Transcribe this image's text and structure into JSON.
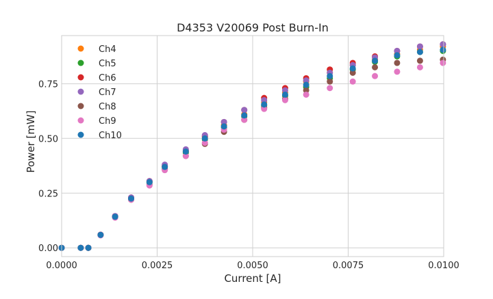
{
  "chart_data": {
    "type": "scatter",
    "title": "D4353 V20069 Post Burn-In",
    "xlabel": "Current [A]",
    "ylabel": "Power [mW]",
    "xlim": [
      0.0,
      0.01
    ],
    "ylim": [
      -0.04,
      0.97
    ],
    "xticks": [
      "0.0000",
      "0.0025",
      "0.0050",
      "0.0075",
      "0.0100"
    ],
    "xtick_values": [
      0.0,
      0.0025,
      0.005,
      0.0075,
      0.01
    ],
    "yticks": [
      "0.00",
      "0.25",
      "0.50",
      "0.75"
    ],
    "ytick_values": [
      0.0,
      0.25,
      0.5,
      0.75
    ],
    "grid": true,
    "legend_position": "top-left",
    "x": [
      0.0,
      0.0005,
      0.0007,
      0.00102,
      0.0014,
      0.00182,
      0.0023,
      0.0027,
      0.00325,
      0.00375,
      0.00425,
      0.00478,
      0.0053,
      0.00585,
      0.0064,
      0.00702,
      0.00762,
      0.0082,
      0.00878,
      0.00938,
      0.00998
    ],
    "series": [
      {
        "name": "Ch4",
        "color": "#ff7f0e",
        "values": [
          0.0,
          0.0,
          0.0,
          0.059,
          0.142,
          0.225,
          0.3,
          0.37,
          0.44,
          0.505,
          0.56,
          0.61,
          0.665,
          0.71,
          0.76,
          0.8,
          0.835,
          0.86,
          0.885,
          0.905,
          0.92
        ]
      },
      {
        "name": "Ch5",
        "color": "#2ca02c",
        "values": [
          0.0,
          0.0,
          0.0,
          0.059,
          0.142,
          0.225,
          0.3,
          0.37,
          0.435,
          0.495,
          0.55,
          0.6,
          0.65,
          0.695,
          0.735,
          0.775,
          0.815,
          0.85,
          0.875,
          0.895,
          0.9
        ]
      },
      {
        "name": "Ch6",
        "color": "#d62728",
        "values": [
          0.0,
          0.0,
          0.0,
          0.06,
          0.145,
          0.23,
          0.305,
          0.375,
          0.445,
          0.51,
          0.575,
          0.63,
          0.685,
          0.73,
          0.775,
          0.815,
          0.845,
          0.875,
          0.9,
          0.92,
          0.93
        ]
      },
      {
        "name": "Ch7",
        "color": "#9467bd",
        "values": [
          0.0,
          0.0,
          0.0,
          0.06,
          0.145,
          0.23,
          0.305,
          0.38,
          0.45,
          0.515,
          0.575,
          0.63,
          0.675,
          0.72,
          0.765,
          0.8,
          0.835,
          0.87,
          0.9,
          0.92,
          0.93
        ]
      },
      {
        "name": "Ch8",
        "color": "#8c564b",
        "values": [
          0.0,
          0.0,
          0.0,
          0.058,
          0.14,
          0.22,
          0.29,
          0.36,
          0.42,
          0.475,
          0.53,
          0.585,
          0.64,
          0.68,
          0.72,
          0.76,
          0.8,
          0.825,
          0.845,
          0.855,
          0.86
        ]
      },
      {
        "name": "Ch9",
        "color": "#e377c2",
        "values": [
          0.0,
          0.0,
          0.0,
          0.057,
          0.138,
          0.22,
          0.285,
          0.355,
          0.42,
          0.48,
          0.54,
          0.585,
          0.635,
          0.675,
          0.7,
          0.73,
          0.76,
          0.785,
          0.805,
          0.825,
          0.845
        ]
      },
      {
        "name": "Ch10",
        "color": "#1f77b4",
        "values": [
          0.0,
          0.0,
          0.0,
          0.059,
          0.142,
          0.225,
          0.3,
          0.37,
          0.44,
          0.5,
          0.555,
          0.605,
          0.655,
          0.7,
          0.745,
          0.785,
          0.82,
          0.855,
          0.88,
          0.895,
          0.905
        ]
      }
    ]
  }
}
